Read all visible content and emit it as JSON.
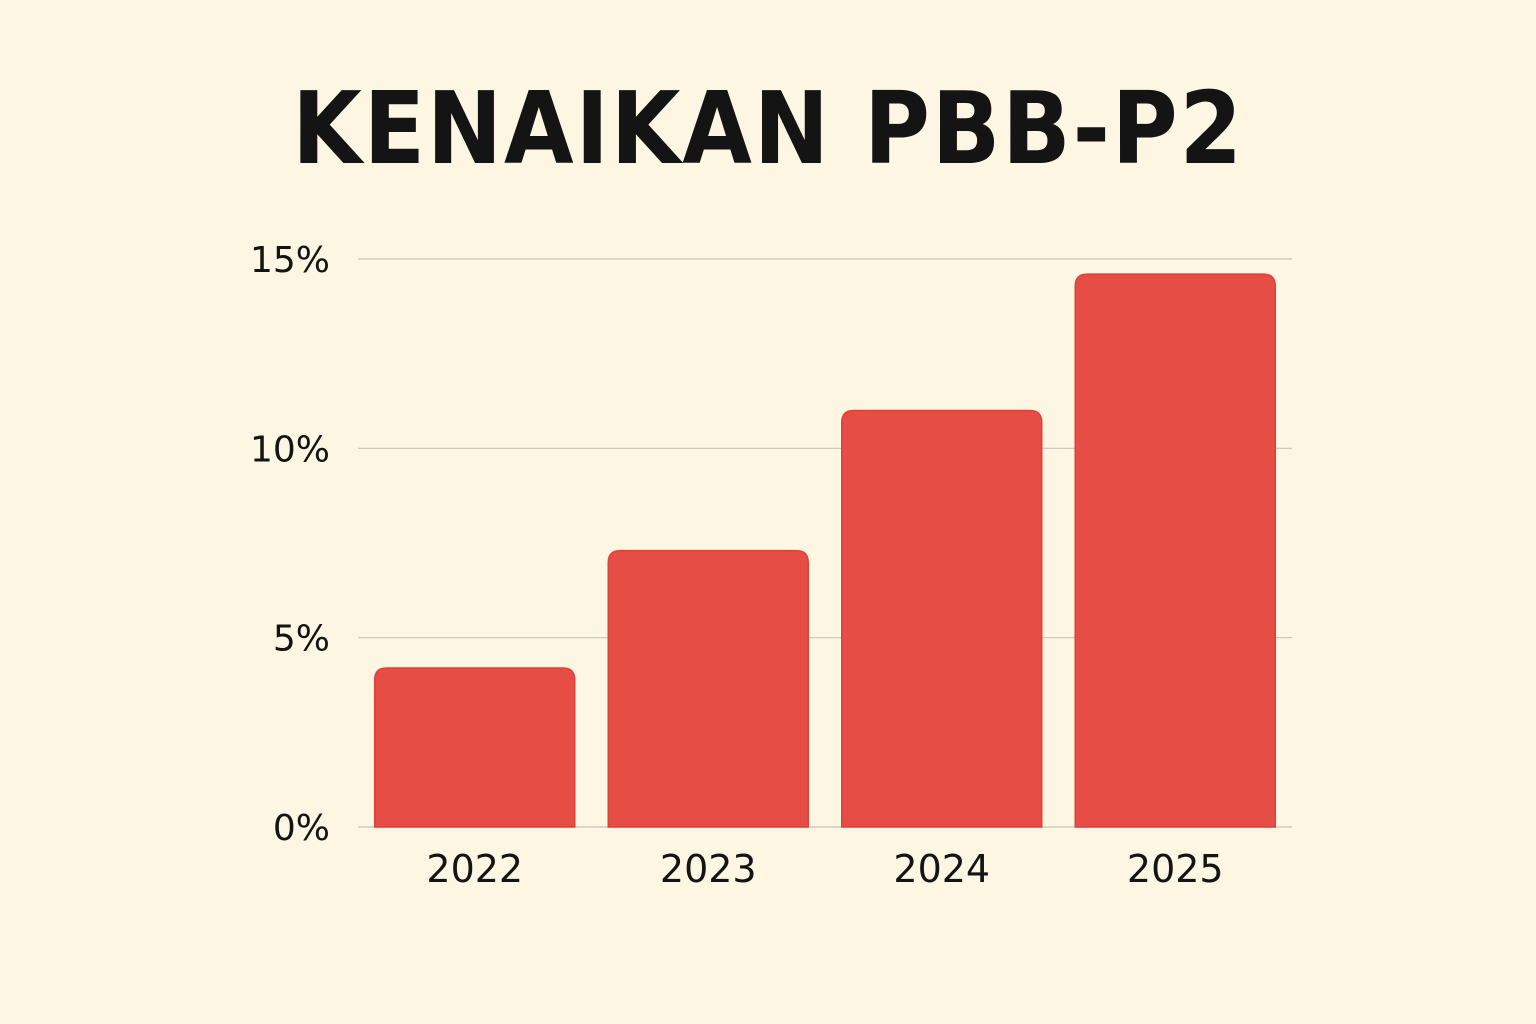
{
  "chart_data": {
    "type": "bar",
    "title": "KENAIKAN PBB-P2",
    "categories": [
      "2022",
      "2023",
      "2024",
      "2025"
    ],
    "values": [
      4.2,
      7.3,
      11.0,
      14.6
    ],
    "unit": "%",
    "ylim": [
      0,
      15
    ],
    "yticks": [
      0,
      5,
      10,
      15
    ],
    "ytick_labels": [
      "0%",
      "5%",
      "10%",
      "15%"
    ],
    "xlabel": "",
    "ylabel": "",
    "grid": true,
    "colors": {
      "bar": "#e54d45",
      "background": "#fdf6e3",
      "grid": "#c8c4b8",
      "text": "#141414"
    }
  }
}
